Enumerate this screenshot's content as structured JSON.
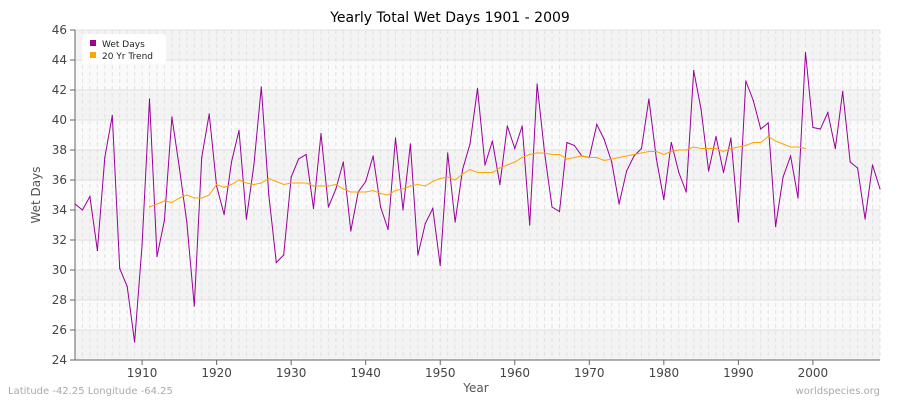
{
  "chart_data": {
    "type": "line",
    "title": "Yearly Total Wet Days 1901 - 2009",
    "xlabel": "Year",
    "ylabel": "Wet Days",
    "xlim": [
      1901,
      2009
    ],
    "ylim": [
      24,
      46
    ],
    "x_ticks": [
      1910,
      1920,
      1930,
      1940,
      1950,
      1960,
      1970,
      1980,
      1990,
      2000
    ],
    "y_ticks": [
      24,
      26,
      28,
      30,
      32,
      34,
      36,
      38,
      40,
      42,
      44,
      46
    ],
    "grid": true,
    "legend_position": "top-left",
    "series": [
      {
        "name": "Wet Days",
        "color": "#990099",
        "start_year": 1901,
        "values": [
          34.4,
          34.0,
          34.9,
          31.3,
          37.5,
          40.3,
          30.1,
          28.9,
          25.2,
          31.7,
          41.4,
          30.9,
          33.3,
          40.2,
          36.8,
          33.2,
          27.6,
          37.5,
          40.4,
          35.6,
          33.7,
          37.2,
          39.3,
          33.4,
          37.0,
          42.2,
          35.0,
          30.5,
          31.0,
          36.2,
          37.4,
          37.7,
          34.1,
          39.1,
          34.2,
          35.4,
          37.2,
          32.6,
          35.2,
          35.9,
          37.6,
          34.2,
          32.7,
          38.8,
          34.0,
          38.4,
          31.0,
          33.1,
          34.1,
          30.3,
          37.8,
          33.2,
          36.7,
          38.4,
          42.1,
          37.0,
          38.6,
          35.7,
          39.6,
          38.1,
          39.6,
          33.0,
          42.4,
          37.8,
          34.2,
          33.9,
          38.5,
          38.3,
          37.6,
          37.5,
          39.7,
          38.7,
          37.2,
          34.4,
          36.6,
          37.6,
          38.1,
          41.4,
          37.4,
          34.7,
          38.5,
          36.5,
          35.2,
          43.3,
          40.7,
          36.6,
          38.9,
          36.5,
          38.8,
          33.2,
          42.6,
          41.3,
          39.4,
          39.8,
          32.9,
          36.2,
          37.6,
          34.8,
          44.5,
          39.5,
          39.4,
          40.5,
          38.1,
          41.9,
          37.2,
          36.8,
          33.4,
          37.0,
          35.4
        ]
      },
      {
        "name": "20 Yr Trend",
        "color": "#FFA500",
        "start_year": 1911,
        "values": [
          34.2,
          34.4,
          34.6,
          34.5,
          34.8,
          35.0,
          34.8,
          34.8,
          35.0,
          35.7,
          35.5,
          35.7,
          36.0,
          35.8,
          35.7,
          35.8,
          36.1,
          35.9,
          35.7,
          35.8,
          35.8,
          35.8,
          35.6,
          35.6,
          35.6,
          35.7,
          35.4,
          35.2,
          35.2,
          35.2,
          35.3,
          35.1,
          35.0,
          35.3,
          35.4,
          35.6,
          35.7,
          35.6,
          35.9,
          36.1,
          36.2,
          36.0,
          36.4,
          36.7,
          36.5,
          36.5,
          36.5,
          36.8,
          37.0,
          37.2,
          37.5,
          37.7,
          37.8,
          37.8,
          37.7,
          37.7,
          37.4,
          37.5,
          37.6,
          37.5,
          37.5,
          37.3,
          37.4,
          37.5,
          37.6,
          37.7,
          37.8,
          37.9,
          37.9,
          37.7,
          37.9,
          38.0,
          38.0,
          38.2,
          38.1,
          38.1,
          38.1,
          37.9,
          38.1,
          38.2,
          38.3,
          38.5,
          38.5,
          38.9,
          38.6,
          38.4,
          38.2,
          38.2,
          38.1
        ]
      }
    ]
  },
  "footer": {
    "location": "Latitude -42.25 Longitude -64.25",
    "site": "worldspecies.org"
  }
}
